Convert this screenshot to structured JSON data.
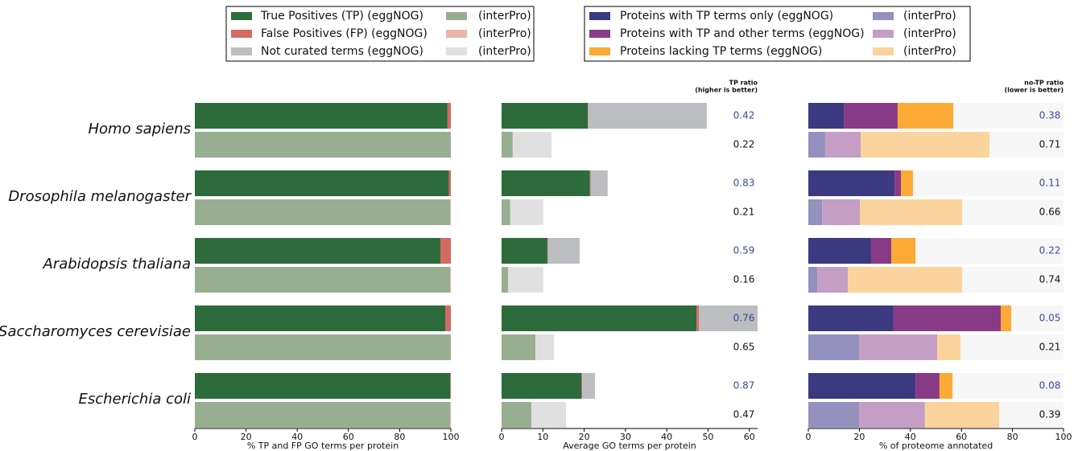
{
  "chart_data": [
    {
      "type": "bar",
      "orientation": "horizontal",
      "stacked": true,
      "categories": [
        "Homo sapiens",
        "Drosophila melanogaster",
        "Arabidopsis thaliana",
        "Saccharomyces cerevisiae",
        "Escherichia coli"
      ],
      "xlabel": "% TP and FP GO terms per protein",
      "xlim": [
        0,
        100
      ],
      "xticks": [
        0,
        20,
        40,
        60,
        80,
        100
      ],
      "series": [
        {
          "color": "#2d6b3c",
          "values": [
            98.7,
            99.2,
            95.9,
            97.8,
            99.7
          ],
          "interpro": {
            "color": "#98ae91",
            "values": [
              100,
              99.8,
              99.7,
              100,
              99.8
            ]
          }
        },
        {
          "color": "#d46a63",
          "values": [
            1.3,
            0.8,
            4.1,
            2.2,
            0.3
          ],
          "interpro": {
            "color": "#e8b4ad",
            "values": [
              0,
              0.2,
              0.3,
              0,
              0.2
            ]
          }
        }
      ]
    },
    {
      "type": "bar",
      "orientation": "horizontal",
      "stacked": true,
      "xlabel": "Average GO terms per protein",
      "xlim": [
        0,
        62
      ],
      "xticks": [
        0,
        10,
        20,
        30,
        40,
        50,
        60
      ],
      "ratio_title": "TP ratio",
      "ratio_note": "(higher is better)",
      "ratio_color": "#3b4a9c",
      "ratios": [
        0.42,
        0.83,
        0.59,
        0.76,
        0.87
      ],
      "interpro_ratios": [
        0.22,
        0.21,
        0.16,
        0.65,
        0.47
      ],
      "series": [
        {
          "name": "True Positives (TP) (eggNOG)",
          "color": "#2d6b3c",
          "values": [
            20.9,
            21.4,
            11.1,
            47.2,
            19.3
          ],
          "interpro": {
            "name": "(interPro)",
            "color": "#98ae91",
            "values": [
              2.7,
              2.1,
              1.6,
              8.2,
              7.2
            ]
          }
        },
        {
          "name": "False Positives (FP) (eggNOG)",
          "color": "#d46a63",
          "values": [
            0.1,
            0.2,
            0.1,
            0.6,
            0.2
          ],
          "interpro": {
            "name": "(interPro)",
            "color": "#e8b4ad",
            "values": [
              0,
              0,
              0,
              0,
              0
            ]
          }
        },
        {
          "name": "Not curated terms (eggNOG)",
          "color": "#bcbdc0",
          "values": [
            28.7,
            4.1,
            7.7,
            14.2,
            3.1
          ],
          "interpro": {
            "name": "(interPro)",
            "color": "#e0e0e0",
            "values": [
              9.4,
              8.0,
              8.5,
              4.5,
              8.4
            ]
          }
        }
      ]
    },
    {
      "type": "bar",
      "orientation": "horizontal",
      "stacked": true,
      "background": "#f7f7f7",
      "xlabel": "% of proteome annotated",
      "xlim": [
        0,
        100
      ],
      "xticks": [
        0,
        20,
        40,
        60,
        80,
        100
      ],
      "ratio_title": "no-TP ratio",
      "ratio_note": "(lower is better)",
      "ratio_color": "#3b4a9c",
      "ratios": [
        0.38,
        0.11,
        0.22,
        0.05,
        0.08
      ],
      "interpro_ratios": [
        0.71,
        0.66,
        0.74,
        0.21,
        0.39
      ],
      "series": [
        {
          "name": "Proteins with TP terms only (eggNOG)",
          "color": "#3b3a80",
          "values": [
            13.9,
            33.8,
            24.6,
            33.4,
            42.0
          ],
          "interpro": {
            "name": "(interPro)",
            "color": "#9491bf",
            "values": [
              6.6,
              5.4,
              3.5,
              19.9,
              19.9
            ]
          }
        },
        {
          "name": "Proteins with TP and other terms (eggNOG)",
          "color": "#893a86",
          "values": [
            21.1,
            2.5,
            7.9,
            42.0,
            9.4
          ],
          "interpro": {
            "name": "(interPro)",
            "color": "#c49ec5",
            "values": [
              13.9,
              14.8,
              12.0,
              30.6,
              25.8
            ]
          }
        },
        {
          "name": "Proteins lacking TP terms (eggNOG)",
          "color": "#fbab35",
          "values": [
            21.8,
            4.7,
            9.5,
            4.1,
            5.1
          ],
          "interpro": {
            "name": "(interPro)",
            "color": "#fbd49d",
            "values": [
              50.5,
              40.1,
              44.8,
              9.1,
              29.1
            ]
          }
        }
      ]
    }
  ]
}
